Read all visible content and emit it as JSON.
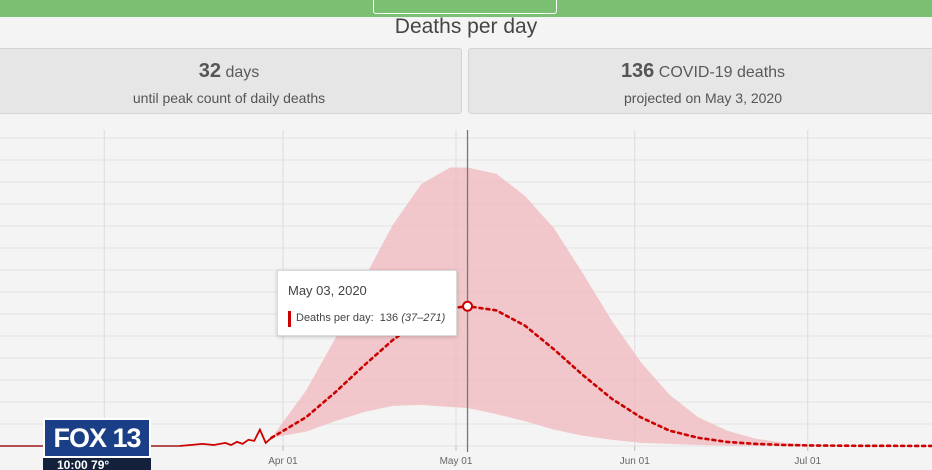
{
  "page": {
    "title": "Deaths per day"
  },
  "summary": {
    "left": {
      "value": "32",
      "unit": "days",
      "caption": "until peak count of daily deaths"
    },
    "right": {
      "value": "136",
      "unit": "COVID-19 deaths",
      "caption": "projected on May 3, 2020"
    }
  },
  "tooltip": {
    "date": "May 03, 2020",
    "label": "Deaths per day:",
    "value": "136",
    "range": "(37–271)"
  },
  "broadcast": {
    "logo": "FOX 13",
    "ticker": "10:00 79°"
  },
  "colors": {
    "accent_bar": "#7bbf72",
    "band": "#f0b8bd",
    "line": "#cc0000"
  },
  "chart_data": {
    "type": "line",
    "xlabel": "",
    "ylabel": "",
    "x_ticks": [
      "Apr 01",
      "May 01",
      "Jun 01",
      "Jul 01"
    ],
    "ylim": [
      0,
      290
    ],
    "highlight": {
      "date": "2020-05-03",
      "value": 136,
      "lower": 37,
      "upper": 271
    },
    "series": [
      {
        "kind": "observed",
        "x": [
          "2020-03-14",
          "2020-03-16",
          "2020-03-18",
          "2020-03-20",
          "2020-03-22",
          "2020-03-23",
          "2020-03-24",
          "2020-03-25",
          "2020-03-26",
          "2020-03-27",
          "2020-03-28",
          "2020-03-29",
          "2020-03-30"
        ],
        "y": [
          0,
          1,
          2,
          1,
          3,
          1,
          4,
          2,
          6,
          5,
          16,
          3,
          8
        ]
      },
      {
        "kind": "projected",
        "x": [
          "2020-03-30",
          "2020-04-05",
          "2020-04-10",
          "2020-04-15",
          "2020-04-20",
          "2020-04-25",
          "2020-04-30",
          "2020-05-03",
          "2020-05-08",
          "2020-05-13",
          "2020-05-18",
          "2020-05-23",
          "2020-05-28",
          "2020-06-02",
          "2020-06-07",
          "2020-06-12",
          "2020-06-17",
          "2020-06-22",
          "2020-06-27",
          "2020-07-02",
          "2020-07-10",
          "2020-07-20",
          "2020-08-01"
        ],
        "y": [
          8,
          28,
          52,
          78,
          103,
          123,
          134,
          136,
          132,
          117,
          94,
          69,
          46,
          28,
          15,
          8,
          4,
          2,
          1,
          0.5,
          0.2,
          0.1,
          0
        ],
        "lower": [
          8,
          14,
          24,
          33,
          39,
          40,
          38,
          37,
          31,
          24,
          16,
          10,
          6,
          3,
          2,
          1,
          0.5,
          0.2,
          0.1,
          0,
          0,
          0,
          0
        ],
        "upper": [
          8,
          54,
          104,
          162,
          215,
          255,
          271,
          271,
          265,
          243,
          212,
          168,
          122,
          82,
          50,
          28,
          15,
          7,
          3,
          1.5,
          0.5,
          0.2,
          0
        ]
      }
    ]
  }
}
